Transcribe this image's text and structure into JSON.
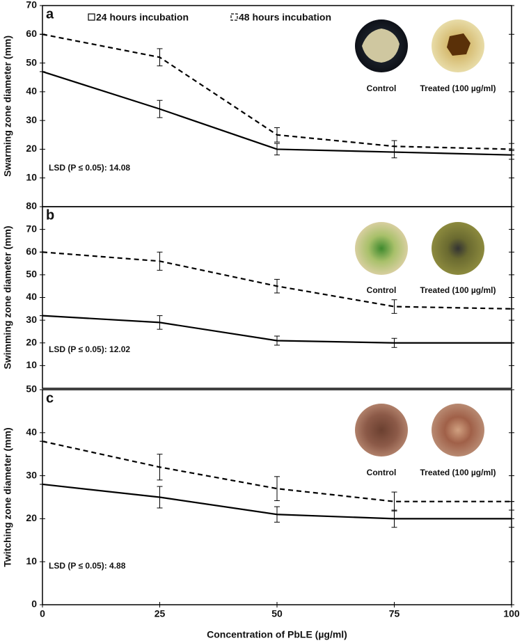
{
  "chart_data": [
    {
      "type": "line",
      "panel_label": "a",
      "ylabel": "Swarming  zone diameter (mm)",
      "lsd": "LSD (P ≤ 0.05): 14.08",
      "image_labels": [
        "Control",
        "Treated (100 µg/ml)"
      ],
      "x": [
        0,
        25,
        50,
        75,
        100
      ],
      "xlim": [
        0,
        100
      ],
      "ylim": [
        0,
        70
      ],
      "yticks": [
        10,
        20,
        30,
        40,
        50,
        60,
        70
      ],
      "series": [
        {
          "name": "24 hours incubation",
          "color": "#000000",
          "linestyle": "solid",
          "values": [
            47,
            34,
            20,
            19,
            18
          ],
          "errors": [
            0,
            3,
            2,
            2,
            1.5
          ]
        },
        {
          "name": "48 hours incubation",
          "color": "#000000",
          "linestyle": "dashed",
          "values": [
            60,
            52,
            25,
            21,
            20
          ],
          "errors": [
            0,
            3,
            2.5,
            2,
            2
          ]
        }
      ]
    },
    {
      "type": "line",
      "panel_label": "b",
      "ylabel": "Swimming zone diameter (mm)",
      "lsd": "LSD (P ≤ 0.05): 12.02",
      "image_labels": [
        "Control",
        "Treated (100 µg/ml)"
      ],
      "x": [
        0,
        25,
        50,
        75,
        100
      ],
      "xlim": [
        0,
        100
      ],
      "ylim": [
        0,
        80
      ],
      "yticks": [
        10,
        20,
        30,
        40,
        50,
        60,
        70,
        80
      ],
      "series": [
        {
          "color": "#000000",
          "linestyle": "solid",
          "values": [
            32,
            29,
            21,
            20,
            20
          ],
          "errors": [
            0,
            3,
            2,
            2,
            0
          ]
        },
        {
          "color": "#000000",
          "linestyle": "dashed",
          "values": [
            60,
            56,
            45,
            36,
            35
          ],
          "errors": [
            0,
            4,
            3,
            3,
            0
          ]
        }
      ]
    },
    {
      "type": "line",
      "panel_label": "c",
      "ylabel": "Twitching zone diameter (mm)",
      "lsd": "LSD (P ≤ 0.05): 4.88",
      "image_labels": [
        "Control",
        "Treated (100 µg/ml)"
      ],
      "xlabel": "Concentration of  PbLE (µg/ml)",
      "x": [
        0,
        25,
        50,
        75,
        100
      ],
      "xlim": [
        0,
        100
      ],
      "xticks": [
        0,
        25,
        50,
        75,
        100
      ],
      "ylim": [
        0,
        50
      ],
      "yticks": [
        0,
        10,
        20,
        30,
        40,
        50
      ],
      "series": [
        {
          "color": "#000000",
          "linestyle": "solid",
          "values": [
            28,
            25,
            21,
            20,
            20
          ],
          "errors": [
            0,
            2.5,
            1.8,
            2,
            2
          ]
        },
        {
          "color": "#000000",
          "linestyle": "dashed",
          "values": [
            38,
            32,
            27,
            24,
            24
          ],
          "errors": [
            0,
            3,
            2.8,
            2.2,
            0
          ]
        }
      ]
    }
  ]
}
